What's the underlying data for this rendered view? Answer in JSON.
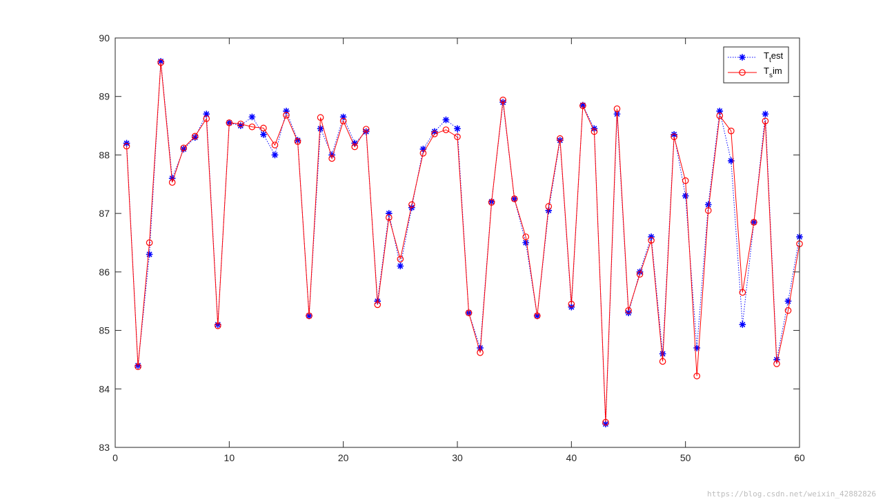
{
  "chart_data": {
    "type": "line",
    "xlim": [
      0,
      60
    ],
    "ylim": [
      83,
      90
    ],
    "x_ticks": [
      "0",
      "10",
      "20",
      "30",
      "40",
      "50",
      "60"
    ],
    "y_ticks": [
      "83",
      "84",
      "85",
      "86",
      "87",
      "88",
      "89",
      "90"
    ],
    "grid": false,
    "legend_position": "top-right",
    "x": [
      1,
      2,
      3,
      4,
      5,
      6,
      7,
      8,
      9,
      10,
      11,
      12,
      13,
      14,
      15,
      16,
      17,
      18,
      19,
      20,
      21,
      22,
      23,
      24,
      25,
      26,
      27,
      28,
      29,
      30,
      31,
      32,
      33,
      34,
      35,
      36,
      37,
      38,
      39,
      40,
      41,
      42,
      43,
      44,
      45,
      46,
      47,
      48,
      49,
      50,
      51,
      52,
      53,
      54,
      55,
      56,
      57,
      58,
      59,
      60
    ],
    "series": [
      {
        "name_main": "T",
        "name_sub": "t",
        "name_rest": "est",
        "color": "#0000ff",
        "marker": "asterisk",
        "line_style": "dotted",
        "values": [
          88.2,
          84.4,
          86.3,
          89.6,
          87.6,
          88.1,
          88.3,
          88.7,
          85.1,
          88.55,
          88.5,
          88.65,
          88.35,
          88.0,
          88.75,
          88.25,
          85.25,
          88.45,
          88.0,
          88.65,
          88.2,
          88.4,
          85.5,
          87.0,
          86.1,
          87.1,
          88.1,
          88.4,
          88.6,
          88.45,
          85.3,
          84.7,
          87.2,
          88.9,
          87.25,
          86.5,
          85.25,
          87.05,
          88.25,
          85.4,
          88.85,
          88.45,
          83.4,
          88.7,
          85.3,
          86.0,
          86.6,
          84.6,
          88.35,
          87.3,
          84.7,
          87.15,
          88.75,
          87.9,
          85.1,
          86.85,
          88.7,
          84.5,
          85.5,
          86.6
        ]
      },
      {
        "name_main": "T",
        "name_sub": "s",
        "name_rest": "im",
        "color": "#ff0000",
        "marker": "circle",
        "line_style": "solid",
        "values": [
          88.15,
          84.38,
          86.5,
          89.58,
          87.53,
          88.12,
          88.32,
          88.62,
          85.08,
          88.55,
          88.53,
          88.48,
          88.46,
          88.17,
          88.68,
          88.23,
          85.25,
          88.64,
          87.94,
          88.58,
          88.14,
          88.44,
          85.44,
          86.93,
          86.22,
          87.15,
          88.03,
          88.36,
          88.43,
          88.31,
          85.3,
          84.62,
          87.19,
          88.94,
          87.25,
          86.6,
          85.25,
          87.12,
          88.28,
          85.45,
          88.84,
          88.4,
          83.43,
          88.79,
          85.34,
          85.96,
          86.54,
          84.47,
          88.31,
          87.56,
          84.22,
          87.05,
          88.67,
          88.41,
          85.65,
          86.85,
          88.58,
          84.43,
          85.34,
          86.48
        ]
      }
    ]
  },
  "watermark": "https://blog.csdn.net/weixin_42882826"
}
